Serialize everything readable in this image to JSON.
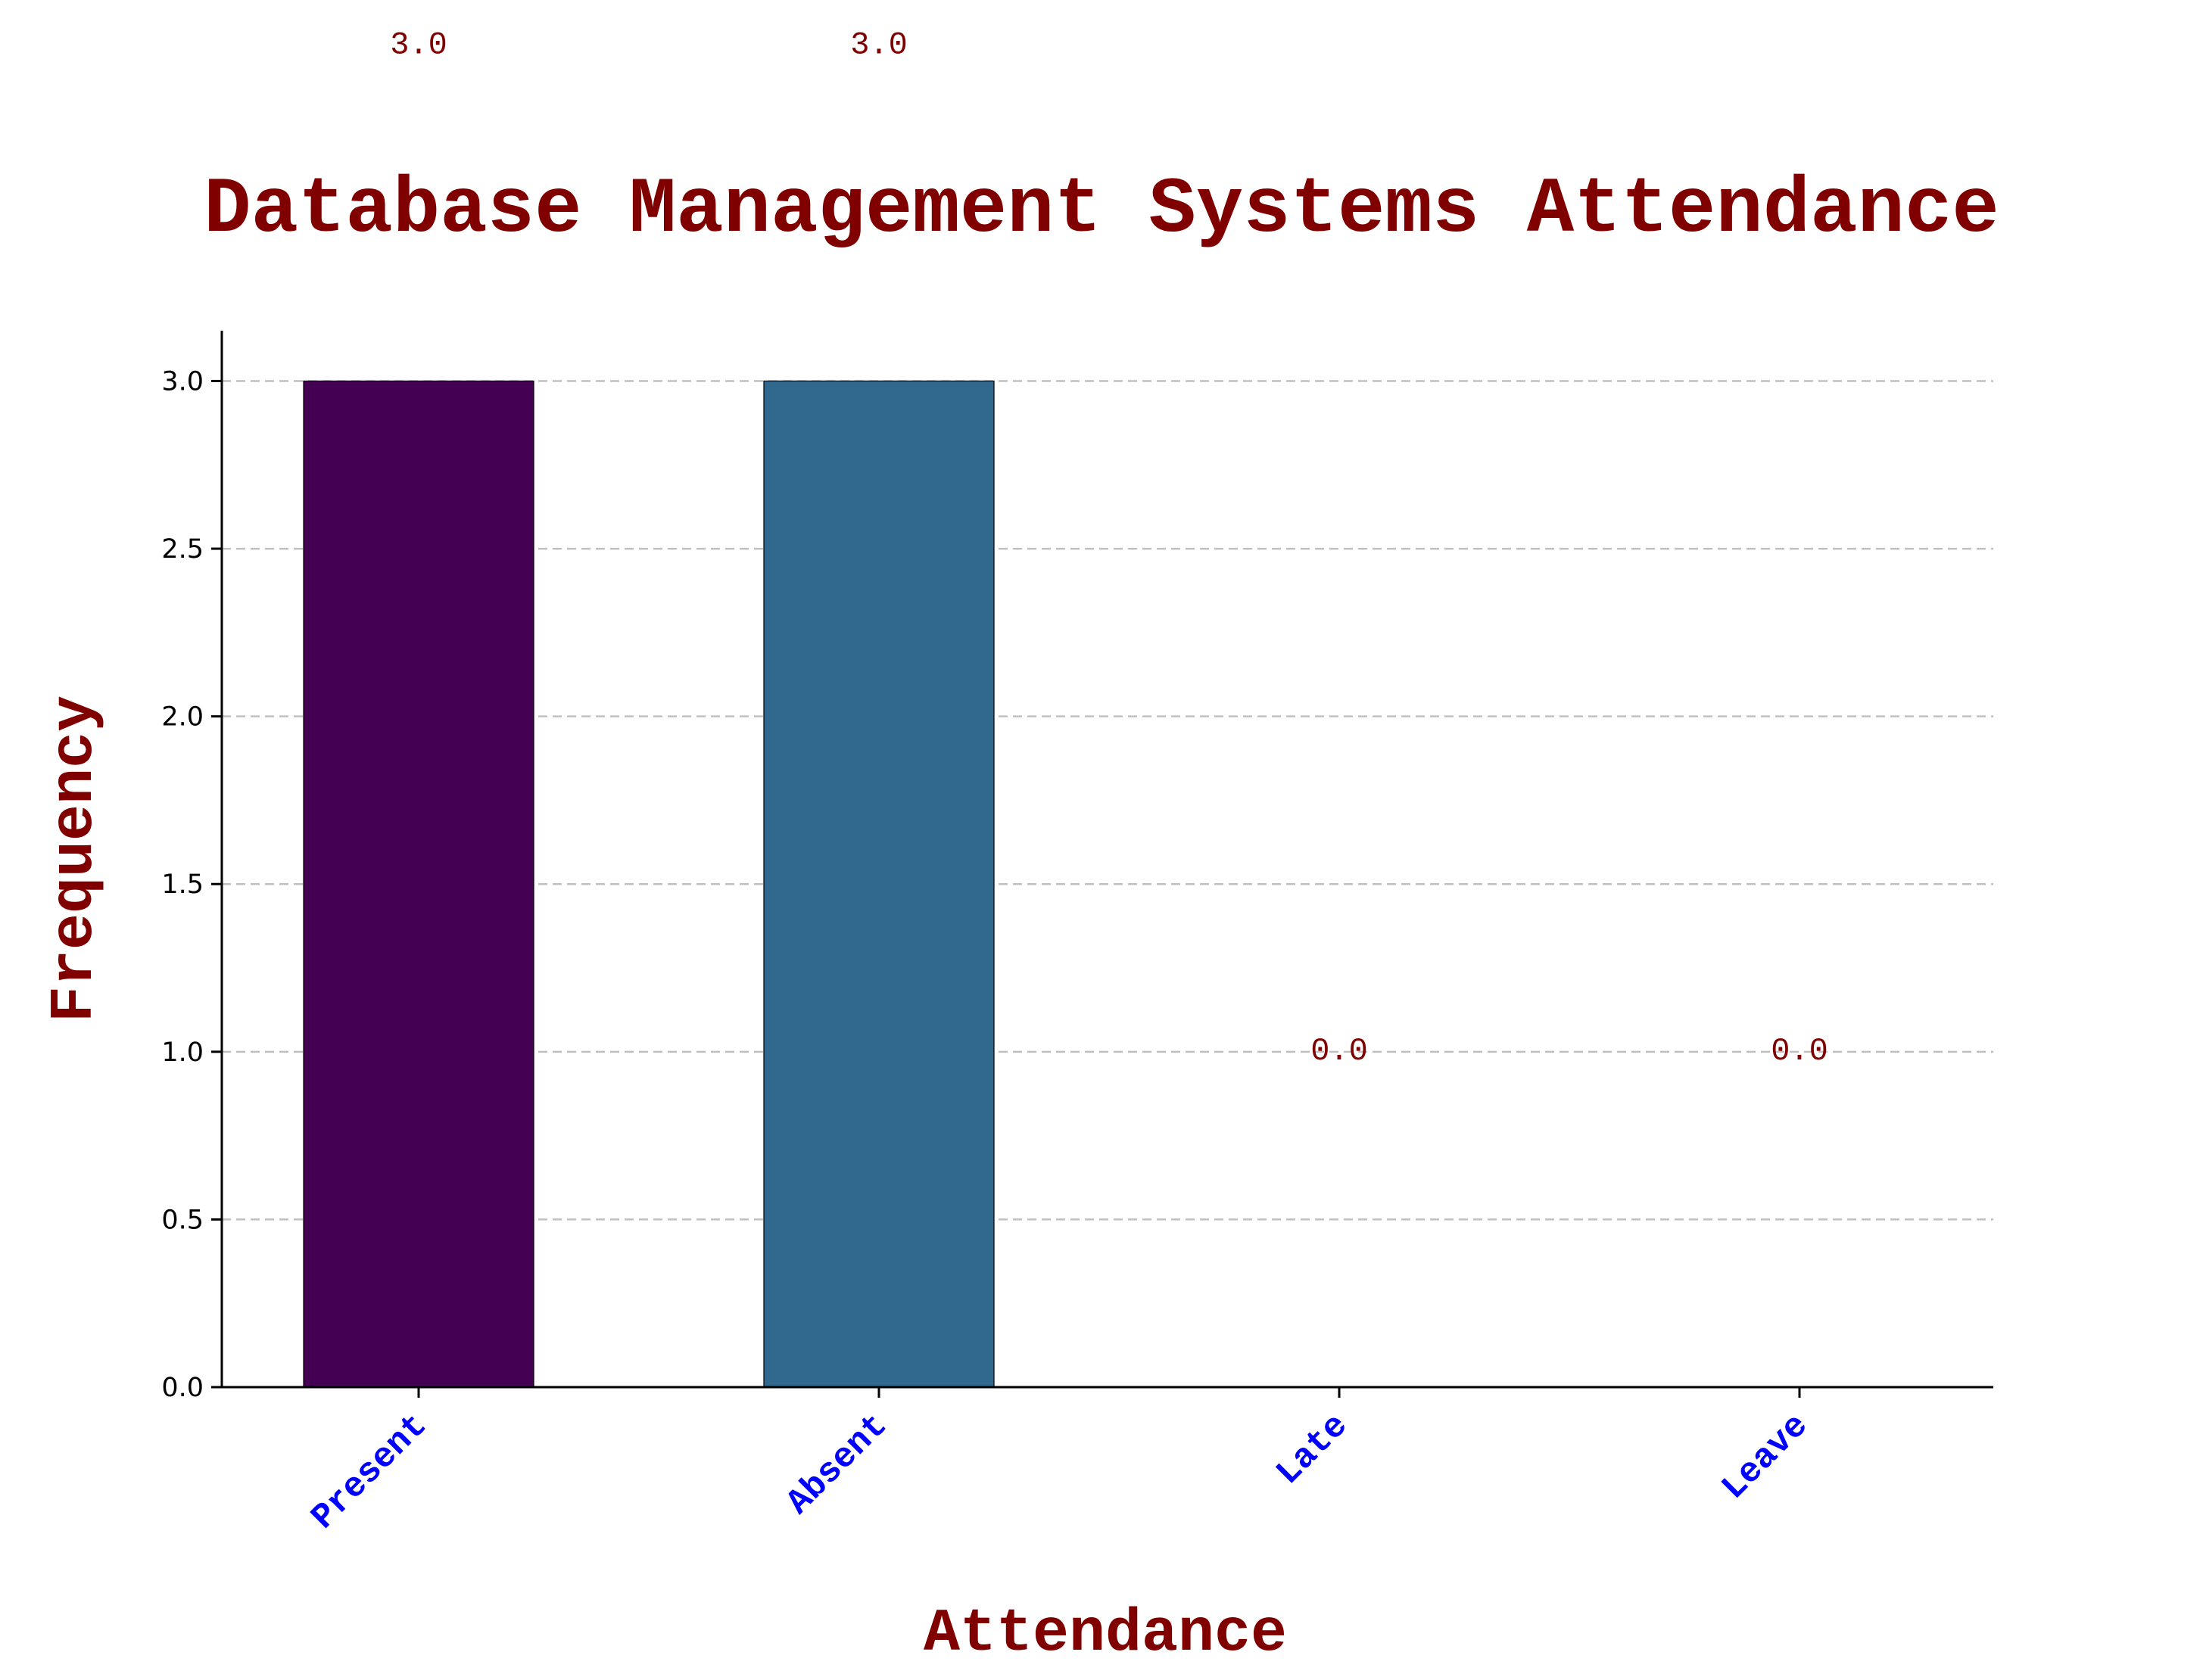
{
  "chart_data": {
    "type": "bar",
    "title": "Database Management Systems Attendance",
    "xlabel": "Attendance",
    "ylabel": "Frequency",
    "categories": [
      "Present",
      "Absent",
      "Late",
      "Leave"
    ],
    "values": [
      3.0,
      3.0,
      0.0,
      0.0
    ],
    "value_labels": [
      "3.0",
      "3.0",
      "0.0",
      "0.0"
    ],
    "bar_colors": [
      "#440154",
      "#31688e",
      "#35b779",
      "#fde725"
    ],
    "ylim": [
      0,
      3.15
    ],
    "yticks": [
      0.0,
      0.5,
      1.0,
      1.5,
      2.0,
      2.5,
      3.0
    ],
    "ytick_labels": [
      "0.0",
      "0.5",
      "1.0",
      "1.5",
      "2.0",
      "2.5",
      "3.0"
    ],
    "grid": "horizontal-dashed",
    "colors": {
      "title": "#800000",
      "axis_labels": "#800000",
      "value_labels": "#800000",
      "xtick_labels": "#0000ff",
      "ytick_labels": "#000000",
      "grid": "#c0c0c0",
      "axes": "#000000"
    }
  }
}
